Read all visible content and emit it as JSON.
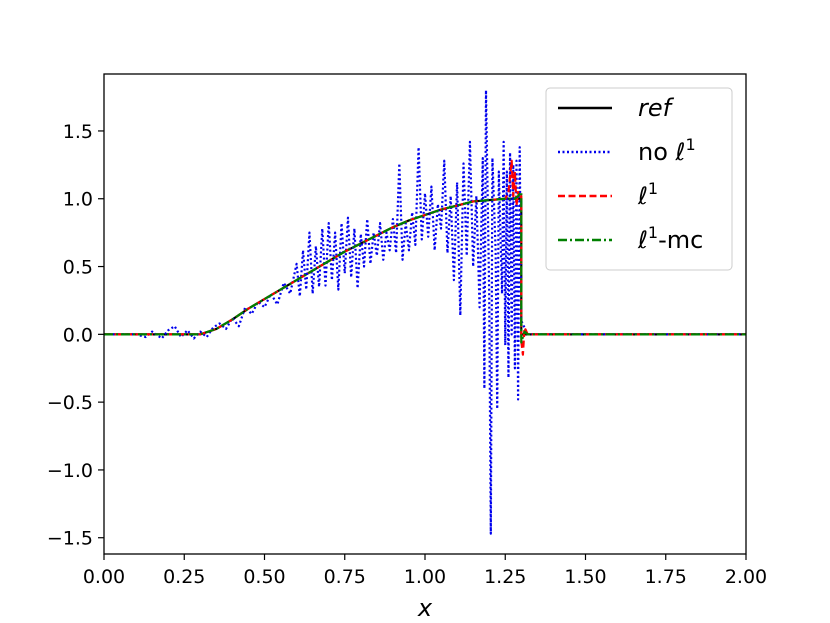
{
  "chart_data": {
    "type": "line",
    "title": "",
    "xlabel": "x",
    "ylabel": "",
    "xlim": [
      0,
      2
    ],
    "ylim": [
      -1.62,
      1.92
    ],
    "grid": false,
    "legend_position": "top-right",
    "xticks": [
      "0.00",
      "0.25",
      "0.50",
      "0.75",
      "1.00",
      "1.25",
      "1.50",
      "1.75",
      "2.00"
    ],
    "xtick_values": [
      0,
      0.25,
      0.5,
      0.75,
      1.0,
      1.25,
      1.5,
      1.75,
      2.0
    ],
    "yticks": [
      "−1.5",
      "−1.0",
      "−0.5",
      "0.0",
      "0.5",
      "1.0",
      "1.5"
    ],
    "ytick_values": [
      -1.5,
      -1.0,
      -0.5,
      0.0,
      0.5,
      1.0,
      1.5
    ],
    "series": [
      {
        "name": "ref",
        "name_italic": true,
        "color": "#000000",
        "style": "solid",
        "points": [
          [
            0,
            0
          ],
          [
            0.3,
            0
          ],
          [
            0.35,
            0.04
          ],
          [
            0.4,
            0.11
          ],
          [
            0.45,
            0.19
          ],
          [
            0.5,
            0.26
          ],
          [
            0.55,
            0.33
          ],
          [
            0.6,
            0.4
          ],
          [
            0.65,
            0.47
          ],
          [
            0.7,
            0.54
          ],
          [
            0.75,
            0.61
          ],
          [
            0.8,
            0.67
          ],
          [
            0.85,
            0.73
          ],
          [
            0.9,
            0.79
          ],
          [
            0.95,
            0.84
          ],
          [
            1.0,
            0.88
          ],
          [
            1.05,
            0.92
          ],
          [
            1.1,
            0.95
          ],
          [
            1.15,
            0.98
          ],
          [
            1.2,
            0.99
          ],
          [
            1.25,
            1.0
          ],
          [
            1.3,
            1.0
          ],
          [
            1.3,
            0
          ],
          [
            2.0,
            0
          ]
        ]
      },
      {
        "name": "no ℓ",
        "name_superscript": "1",
        "color": "#0000ee",
        "style": "dotted",
        "points": [
          [
            0,
            0
          ],
          [
            0.1,
            0
          ],
          [
            0.13,
            -0.02
          ],
          [
            0.15,
            0.02
          ],
          [
            0.18,
            -0.03
          ],
          [
            0.2,
            0.03
          ],
          [
            0.22,
            0.06
          ],
          [
            0.24,
            -0.02
          ],
          [
            0.26,
            0.03
          ],
          [
            0.28,
            -0.03
          ],
          [
            0.3,
            0.02
          ],
          [
            0.32,
            -0.02
          ],
          [
            0.34,
            0.05
          ],
          [
            0.36,
            0.08
          ],
          [
            0.38,
            0.04
          ],
          [
            0.4,
            0.12
          ],
          [
            0.42,
            0.06
          ],
          [
            0.44,
            0.2
          ],
          [
            0.46,
            0.15
          ],
          [
            0.48,
            0.24
          ],
          [
            0.5,
            0.2
          ],
          [
            0.52,
            0.3
          ],
          [
            0.54,
            0.22
          ],
          [
            0.56,
            0.38
          ],
          [
            0.58,
            0.3
          ],
          [
            0.6,
            0.52
          ],
          [
            0.61,
            0.28
          ],
          [
            0.62,
            0.62
          ],
          [
            0.63,
            0.33
          ],
          [
            0.64,
            0.75
          ],
          [
            0.65,
            0.3
          ],
          [
            0.66,
            0.65
          ],
          [
            0.67,
            0.35
          ],
          [
            0.68,
            0.78
          ],
          [
            0.69,
            0.36
          ],
          [
            0.7,
            0.82
          ],
          [
            0.71,
            0.4
          ],
          [
            0.72,
            0.75
          ],
          [
            0.73,
            0.33
          ],
          [
            0.74,
            0.82
          ],
          [
            0.75,
            0.45
          ],
          [
            0.76,
            0.86
          ],
          [
            0.77,
            0.42
          ],
          [
            0.78,
            0.78
          ],
          [
            0.79,
            0.34
          ],
          [
            0.8,
            0.74
          ],
          [
            0.81,
            0.5
          ],
          [
            0.82,
            0.85
          ],
          [
            0.83,
            0.52
          ],
          [
            0.84,
            0.75
          ],
          [
            0.85,
            0.58
          ],
          [
            0.86,
            0.82
          ],
          [
            0.87,
            0.55
          ],
          [
            0.88,
            0.75
          ],
          [
            0.89,
            0.62
          ],
          [
            0.9,
            0.85
          ],
          [
            0.91,
            0.6
          ],
          [
            0.92,
            1.26
          ],
          [
            0.93,
            0.55
          ],
          [
            0.94,
            0.82
          ],
          [
            0.95,
            0.62
          ],
          [
            0.96,
            0.9
          ],
          [
            0.97,
            0.66
          ],
          [
            0.98,
            1.38
          ],
          [
            0.99,
            0.7
          ],
          [
            1.0,
            1.04
          ],
          [
            1.01,
            0.72
          ],
          [
            1.02,
            1.09
          ],
          [
            1.03,
            0.62
          ],
          [
            1.04,
            0.96
          ],
          [
            1.05,
            0.78
          ],
          [
            1.06,
            1.28
          ],
          [
            1.07,
            0.6
          ],
          [
            1.08,
            1.02
          ],
          [
            1.09,
            0.4
          ],
          [
            1.1,
            1.12
          ],
          [
            1.11,
            0.14
          ],
          [
            1.12,
            1.26
          ],
          [
            1.13,
            0.58
          ],
          [
            1.14,
            1.42
          ],
          [
            1.15,
            0.5
          ],
          [
            1.16,
            1.02
          ],
          [
            1.17,
            0.2
          ],
          [
            1.18,
            1.3
          ],
          [
            1.185,
            -0.4
          ],
          [
            1.19,
            1.8
          ],
          [
            1.2,
            0.3
          ],
          [
            1.205,
            -1.47
          ],
          [
            1.21,
            1.3
          ],
          [
            1.22,
            0.62
          ],
          [
            1.225,
            -0.55
          ],
          [
            1.23,
            1.2
          ],
          [
            1.24,
            0.3
          ],
          [
            1.245,
            1.42
          ],
          [
            1.25,
            -0.08
          ],
          [
            1.255,
            1.2
          ],
          [
            1.26,
            -0.32
          ],
          [
            1.265,
            1.34
          ],
          [
            1.27,
            0.0
          ],
          [
            1.275,
            1.25
          ],
          [
            1.28,
            -0.25
          ],
          [
            1.285,
            1.28
          ],
          [
            1.29,
            -0.48
          ],
          [
            1.295,
            1.38
          ],
          [
            1.3,
            0.1
          ],
          [
            1.31,
            0.05
          ],
          [
            1.32,
            0
          ],
          [
            2.0,
            0
          ]
        ]
      },
      {
        "name": "ℓ",
        "name_superscript": "1",
        "color": "#ff0000",
        "style": "dashed",
        "points": [
          [
            0,
            0
          ],
          [
            0.3,
            0
          ],
          [
            0.35,
            0.04
          ],
          [
            0.4,
            0.11
          ],
          [
            0.45,
            0.19
          ],
          [
            0.5,
            0.26
          ],
          [
            0.55,
            0.33
          ],
          [
            0.6,
            0.4
          ],
          [
            0.65,
            0.47
          ],
          [
            0.7,
            0.54
          ],
          [
            0.75,
            0.61
          ],
          [
            0.8,
            0.67
          ],
          [
            0.85,
            0.73
          ],
          [
            0.9,
            0.79
          ],
          [
            0.95,
            0.84
          ],
          [
            1.0,
            0.88
          ],
          [
            1.05,
            0.92
          ],
          [
            1.1,
            0.95
          ],
          [
            1.15,
            0.98
          ],
          [
            1.2,
            0.99
          ],
          [
            1.25,
            1.0
          ],
          [
            1.26,
            1.05
          ],
          [
            1.27,
            1.28
          ],
          [
            1.275,
            1.02
          ],
          [
            1.28,
            1.2
          ],
          [
            1.285,
            0.95
          ],
          [
            1.29,
            1.05
          ],
          [
            1.295,
            1.0
          ],
          [
            1.3,
            1.02
          ],
          [
            1.3,
            -0.05
          ],
          [
            1.305,
            -0.15
          ],
          [
            1.31,
            0.05
          ],
          [
            1.32,
            0
          ],
          [
            2.0,
            0
          ]
        ]
      },
      {
        "name": "ℓ",
        "name_superscript": "1",
        "name_suffix": "-mc",
        "color": "#008000",
        "style": "dashdot",
        "points": [
          [
            0,
            0
          ],
          [
            0.3,
            0
          ],
          [
            0.35,
            0.04
          ],
          [
            0.4,
            0.11
          ],
          [
            0.45,
            0.19
          ],
          [
            0.5,
            0.26
          ],
          [
            0.55,
            0.33
          ],
          [
            0.6,
            0.4
          ],
          [
            0.65,
            0.47
          ],
          [
            0.7,
            0.54
          ],
          [
            0.75,
            0.61
          ],
          [
            0.8,
            0.67
          ],
          [
            0.85,
            0.73
          ],
          [
            0.9,
            0.79
          ],
          [
            0.95,
            0.84
          ],
          [
            1.0,
            0.88
          ],
          [
            1.05,
            0.92
          ],
          [
            1.1,
            0.95
          ],
          [
            1.15,
            0.98
          ],
          [
            1.2,
            0.99
          ],
          [
            1.25,
            1.0
          ],
          [
            1.28,
            1.0
          ],
          [
            1.29,
            1.02
          ],
          [
            1.3,
            1.05
          ],
          [
            1.3,
            -0.06
          ],
          [
            1.31,
            0.02
          ],
          [
            1.32,
            0
          ],
          [
            2.0,
            0
          ]
        ]
      }
    ]
  }
}
